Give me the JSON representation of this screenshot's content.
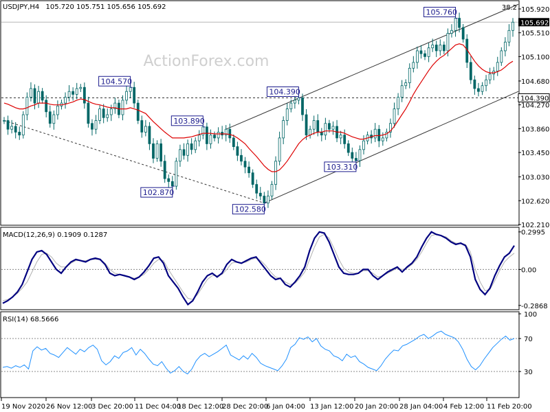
{
  "chart_data": [
    {
      "type": "candlestick",
      "panel": "price",
      "title": "USDJPY,H4",
      "ohlc_text": "105.720 105.751 105.656 105.692",
      "watermark": "ActionForex.com",
      "fib_label": "38.2",
      "ylim": [
        102.21,
        106.05
      ],
      "y_ticks": [
        "105.920",
        "105.510",
        "105.100",
        "104.680",
        "104.270",
        "103.860",
        "103.450",
        "103.030",
        "102.620",
        "102.210"
      ],
      "last_price": "105.692",
      "support_level": "104.390",
      "annotations": [
        {
          "label": "104.570",
          "value": 104.57,
          "bar": 33
        },
        {
          "label": "102.870",
          "value": 102.87,
          "bar": 44
        },
        {
          "label": "103.890",
          "value": 103.89,
          "bar": 52
        },
        {
          "label": "102.580",
          "value": 102.58,
          "bar": 68
        },
        {
          "label": "104.390",
          "value": 104.39,
          "bar": 77
        },
        {
          "label": "103.310",
          "value": 103.31,
          "bar": 92
        },
        {
          "label": "105.760",
          "value": 105.76,
          "bar": 118
        }
      ],
      "price_path": [
        104.0,
        103.85,
        103.9,
        103.8,
        103.75,
        104.1,
        104.4,
        104.55,
        104.3,
        104.5,
        104.35,
        104.15,
        103.95,
        104.1,
        104.25,
        104.3,
        104.4,
        104.5,
        104.45,
        104.55,
        104.57,
        104.3,
        103.95,
        103.85,
        104.0,
        104.2,
        104.05,
        104.1,
        104.2,
        104.3,
        104.1,
        104.35,
        104.5,
        104.57,
        104.3,
        104.0,
        103.8,
        103.9,
        103.6,
        103.35,
        103.6,
        103.3,
        103.0,
        102.95,
        102.87,
        103.3,
        103.5,
        103.4,
        103.6,
        103.5,
        103.65,
        103.75,
        103.89,
        103.6,
        103.75,
        103.7,
        103.8,
        103.75,
        103.85,
        103.7,
        103.55,
        103.4,
        103.3,
        103.2,
        103.1,
        102.9,
        102.75,
        102.7,
        102.58,
        102.7,
        102.9,
        103.3,
        103.7,
        104.0,
        104.2,
        104.3,
        104.35,
        104.39,
        104.1,
        103.75,
        103.85,
        104.0,
        103.8,
        103.75,
        103.95,
        103.85,
        103.9,
        103.7,
        103.75,
        103.6,
        103.45,
        103.35,
        103.31,
        103.5,
        103.65,
        103.75,
        103.7,
        103.85,
        103.65,
        103.7,
        103.8,
        103.95,
        104.2,
        104.4,
        104.6,
        104.65,
        104.9,
        105.0,
        105.2,
        105.15,
        105.1,
        105.25,
        105.3,
        105.2,
        105.3,
        105.2,
        105.5,
        105.55,
        105.76,
        105.6,
        105.4,
        105.0,
        104.7,
        104.55,
        104.5,
        104.6,
        104.7,
        104.8,
        104.85,
        105.0,
        105.2,
        105.35,
        105.55,
        105.692
      ],
      "ma_path": [
        104.3,
        104.28,
        104.25,
        104.22,
        104.2,
        104.2,
        104.22,
        104.25,
        104.27,
        104.3,
        104.3,
        104.3,
        104.28,
        104.27,
        104.27,
        104.27,
        104.28,
        104.3,
        104.32,
        104.35,
        104.37,
        104.36,
        104.33,
        104.3,
        104.28,
        104.27,
        104.25,
        104.23,
        104.22,
        104.22,
        104.2,
        104.2,
        104.2,
        104.22,
        104.2,
        104.18,
        104.15,
        104.12,
        104.05,
        103.98,
        103.92,
        103.86,
        103.8,
        103.75,
        103.7,
        103.7,
        103.7,
        103.7,
        103.71,
        103.72,
        103.74,
        103.76,
        103.78,
        103.78,
        103.78,
        103.77,
        103.77,
        103.77,
        103.77,
        103.76,
        103.74,
        103.7,
        103.65,
        103.6,
        103.52,
        103.45,
        103.38,
        103.3,
        103.22,
        103.16,
        103.12,
        103.12,
        103.15,
        103.22,
        103.3,
        103.4,
        103.5,
        103.6,
        103.67,
        103.72,
        103.75,
        103.78,
        103.8,
        103.8,
        103.82,
        103.82,
        103.82,
        103.8,
        103.8,
        103.78,
        103.75,
        103.72,
        103.7,
        103.68,
        103.68,
        103.7,
        103.72,
        103.74,
        103.74,
        103.75,
        103.77,
        103.82,
        103.9,
        104.0,
        104.1,
        104.2,
        104.32,
        104.45,
        104.56,
        104.66,
        104.76,
        104.86,
        104.95,
        105.02,
        105.08,
        105.12,
        105.18,
        105.24,
        105.3,
        105.32,
        105.3,
        105.22,
        105.12,
        105.02,
        104.94,
        104.88,
        104.84,
        104.82,
        104.82,
        104.84,
        104.87,
        104.92,
        104.98,
        105.02
      ]
    },
    {
      "type": "line",
      "panel": "macd",
      "label": "MACD(12,26,9) 0.1909 0.1287",
      "ylim": [
        -0.31,
        0.32
      ],
      "y_ticks": [
        0.2995,
        0.0,
        -0.2868
      ],
      "y_tick_labels": [
        "0.2995",
        "0.00",
        "-0.2868"
      ],
      "series": [
        {
          "values": [
            -0.27,
            -0.25,
            -0.22,
            -0.18,
            -0.12,
            -0.02,
            0.08,
            0.14,
            0.15,
            0.12,
            0.06,
            0.0,
            -0.03,
            0.02,
            0.06,
            0.08,
            0.07,
            0.06,
            0.08,
            0.09,
            0.08,
            0.04,
            -0.03,
            -0.05,
            -0.04,
            -0.05,
            -0.06,
            -0.08,
            -0.06,
            -0.02,
            0.03,
            0.09,
            0.1,
            0.05,
            -0.05,
            -0.1,
            -0.15,
            -0.22,
            -0.28,
            -0.25,
            -0.18,
            -0.1,
            -0.05,
            -0.03,
            -0.06,
            -0.03,
            0.04,
            0.08,
            0.06,
            0.05,
            0.07,
            0.09,
            0.1,
            0.05,
            0.0,
            -0.05,
            -0.08,
            -0.07,
            -0.12,
            -0.14,
            -0.1,
            -0.05,
            0.02,
            0.15,
            0.25,
            0.3,
            0.29,
            0.22,
            0.12,
            0.02,
            -0.03,
            -0.04,
            -0.04,
            -0.03,
            0.0,
            0.0,
            -0.05,
            -0.08,
            -0.05,
            -0.02,
            0.0,
            0.02,
            -0.02,
            0.02,
            0.05,
            0.1,
            0.18,
            0.25,
            0.3,
            0.28,
            0.27,
            0.25,
            0.22,
            0.2,
            0.21,
            0.19,
            0.1,
            -0.08,
            -0.16,
            -0.2,
            -0.15,
            -0.05,
            0.03,
            0.1,
            0.13,
            0.19
          ]
        },
        {
          "values": [
            -0.25,
            -0.24,
            -0.22,
            -0.19,
            -0.15,
            -0.1,
            -0.02,
            0.06,
            0.12,
            0.13,
            0.1,
            0.05,
            0.02,
            0.02,
            0.05,
            0.07,
            0.07,
            0.07,
            0.08,
            0.08,
            0.08,
            0.05,
            0.0,
            -0.03,
            -0.04,
            -0.05,
            -0.06,
            -0.07,
            -0.06,
            -0.04,
            0.0,
            0.05,
            0.08,
            0.07,
            0.0,
            -0.06,
            -0.12,
            -0.18,
            -0.23,
            -0.24,
            -0.2,
            -0.14,
            -0.08,
            -0.05,
            -0.05,
            -0.04,
            0.0,
            0.05,
            0.06,
            0.05,
            0.06,
            0.08,
            0.09,
            0.07,
            0.03,
            -0.02,
            -0.06,
            -0.07,
            -0.1,
            -0.12,
            -0.11,
            -0.07,
            -0.02,
            0.08,
            0.18,
            0.26,
            0.28,
            0.25,
            0.17,
            0.08,
            0.01,
            -0.02,
            -0.03,
            -0.03,
            -0.01,
            -0.01,
            -0.03,
            -0.06,
            -0.05,
            -0.03,
            -0.01,
            0.01,
            0.0,
            0.01,
            0.04,
            0.08,
            0.14,
            0.21,
            0.27,
            0.28,
            0.27,
            0.26,
            0.23,
            0.21,
            0.21,
            0.2,
            0.14,
            0.0,
            -0.1,
            -0.17,
            -0.16,
            -0.09,
            -0.01,
            0.06,
            0.1,
            0.13
          ]
        }
      ]
    },
    {
      "type": "line",
      "panel": "rsi",
      "label": "RSI(14) 68.5666",
      "ylim": [
        0,
        100
      ],
      "y_ticks": [
        100,
        70,
        30
      ],
      "y_tick_labels": [
        "100",
        "70",
        "30"
      ],
      "series": [
        {
          "values": [
            35,
            36,
            34,
            37,
            35,
            38,
            33,
            55,
            60,
            56,
            58,
            52,
            50,
            47,
            53,
            59,
            55,
            51,
            57,
            54,
            59,
            62,
            57,
            43,
            38,
            42,
            49,
            46,
            53,
            55,
            59,
            50,
            57,
            52,
            45,
            39,
            37,
            42,
            34,
            28,
            31,
            36,
            30,
            27,
            33,
            43,
            49,
            52,
            48,
            51,
            54,
            58,
            62,
            50,
            47,
            44,
            49,
            45,
            52,
            47,
            40,
            37,
            35,
            33,
            31,
            37,
            45,
            59,
            63,
            71,
            69,
            72,
            66,
            70,
            61,
            57,
            55,
            49,
            47,
            43,
            51,
            47,
            49,
            42,
            39,
            35,
            33,
            31,
            37,
            45,
            51,
            56,
            55,
            61,
            63,
            66,
            69,
            73,
            75,
            70,
            73,
            77,
            79,
            75,
            73,
            71,
            66,
            57,
            45,
            36,
            32,
            37,
            45,
            52,
            59,
            64,
            69,
            73,
            68,
            70
          ]
        }
      ]
    }
  ],
  "x_axis": {
    "labels": [
      "19 Nov 2020",
      "26 Nov 12:00",
      "3 Dec 20:00",
      "11 Dec 04:00",
      "18 Dec 12:00",
      "28 Dec 20:00",
      "6 Jan 04:00",
      "13 Jan 12:00",
      "20 Jan 20:00",
      "28 Jan 04:00",
      "4 Feb 12:00",
      "11 Feb 20:00"
    ]
  },
  "colors": {
    "candle": "#006666",
    "ma": "#dd0000",
    "macd_main": "#000080",
    "macd_signal": "#b0b0b0",
    "rsi": "#1e90ff",
    "annotation": "#1a1a8c",
    "frame": "#000000"
  }
}
